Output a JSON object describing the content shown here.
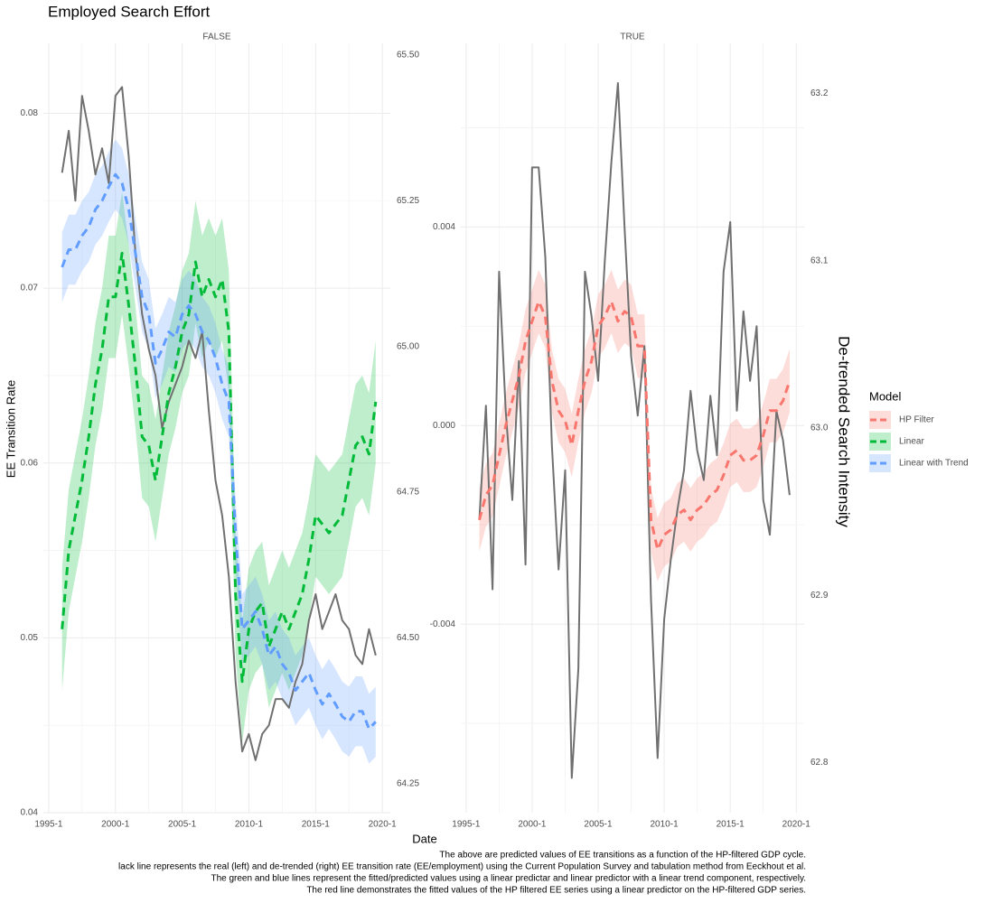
{
  "title": "Employed Search Effort",
  "x_label": "Date",
  "legend": {
    "title": "Model",
    "position": "right"
  },
  "caption": [
    "The above are predicted values of EE transitions as a function of the HP-filtered GDP cycle.",
    "lack line represents the real (left) and de-trended (right) EE transition rate (EE/employment) using the Current Population Survey and tabulation method from Eeckhout et al.",
    "The green and blue lines represent the fitted/predicted values using a linear predictar and linear predictor with a linear trend component, respectively.",
    "The red line demonstrates the fitted values of the HP filtered EE series using a linear predictor on the HP-filtered GDP series."
  ],
  "chart_data": [
    {
      "type": "line",
      "facet": "FALSE",
      "y_label": "EE Transition Rate",
      "grid": true,
      "x": [
        1996,
        1996.5,
        1997,
        1997.5,
        1998,
        1998.5,
        1999,
        1999.5,
        2000,
        2000.5,
        2001,
        2001.5,
        2002,
        2002.5,
        2003,
        2003.5,
        2004,
        2004.5,
        2005,
        2005.5,
        2006,
        2006.5,
        2007,
        2007.5,
        2008,
        2008.5,
        2009,
        2009.5,
        2010,
        2010.5,
        2011,
        2011.5,
        2012,
        2012.5,
        2013,
        2013.5,
        2014,
        2014.5,
        2015,
        2015.5,
        2016,
        2016.5,
        2017,
        2017.5,
        2018,
        2018.5,
        2019,
        2019.5
      ],
      "xlim": [
        1994.6,
        2020.6
      ],
      "xticks": [
        {
          "value": 1995,
          "label": "1995-1"
        },
        {
          "value": 2000,
          "label": "2000-1"
        },
        {
          "value": 2005,
          "label": "2005-1"
        },
        {
          "value": 2010,
          "label": "2010-1"
        },
        {
          "value": 2015,
          "label": "2015-1"
        },
        {
          "value": 2020,
          "label": "2020-1"
        }
      ],
      "ylim": [
        0.04,
        0.084
      ],
      "yticks": [
        0.04,
        0.05,
        0.06,
        0.07,
        0.08
      ],
      "y2lim": [
        64.2,
        65.52
      ],
      "y2ticks": [
        64.25,
        {
          "value": 64.5,
          "label": "64.50"
        },
        64.75,
        {
          "value": 65,
          "label": "65.00"
        },
        65.25,
        {
          "value": 65.5,
          "label": "65.50"
        }
      ],
      "series": [
        {
          "color": "#707070",
          "values": [
            0.0766,
            0.079,
            0.075,
            0.081,
            0.079,
            0.0765,
            0.078,
            0.076,
            0.081,
            0.0815,
            0.0775,
            0.072,
            0.0685,
            0.0665,
            0.065,
            0.062,
            0.0635,
            0.0645,
            0.0655,
            0.067,
            0.066,
            0.0675,
            0.063,
            0.059,
            0.057,
            0.0535,
            0.0475,
            0.0435,
            0.0445,
            0.043,
            0.0445,
            0.045,
            0.0465,
            0.0465,
            0.046,
            0.0475,
            0.0485,
            0.051,
            0.0525,
            0.0505,
            0.0515,
            0.0525,
            0.051,
            0.0505,
            0.049,
            0.0485,
            0.0505,
            0.049
          ]
        },
        {
          "name": "Linear",
          "color": "#00BA38",
          "band": 0.0035,
          "values": [
            0.0505,
            0.055,
            0.057,
            0.059,
            0.0615,
            0.0645,
            0.0665,
            0.0695,
            0.0695,
            0.072,
            0.069,
            0.0655,
            0.0615,
            0.061,
            0.059,
            0.0615,
            0.064,
            0.0655,
            0.0675,
            0.0685,
            0.0715,
            0.0695,
            0.0705,
            0.0695,
            0.0705,
            0.0675,
            0.0525,
            0.0475,
            0.0505,
            0.0515,
            0.052,
            0.0495,
            0.0505,
            0.0515,
            0.0505,
            0.0515,
            0.0525,
            0.0545,
            0.057,
            0.0565,
            0.056,
            0.0565,
            0.057,
            0.059,
            0.061,
            0.0615,
            0.0605,
            0.0635
          ]
        },
        {
          "name": "Linear with Trend",
          "color": "#619CFF",
          "band": 0.002,
          "values": [
            0.0712,
            0.0722,
            0.0722,
            0.073,
            0.0735,
            0.0745,
            0.075,
            0.0758,
            0.0765,
            0.076,
            0.0745,
            0.072,
            0.0695,
            0.0685,
            0.0657,
            0.0665,
            0.0675,
            0.0672,
            0.0685,
            0.069,
            0.0685,
            0.0675,
            0.067,
            0.066,
            0.0645,
            0.0635,
            0.056,
            0.0505,
            0.051,
            0.0515,
            0.0505,
            0.049,
            0.0495,
            0.0485,
            0.048,
            0.047,
            0.0475,
            0.048,
            0.047,
            0.0462,
            0.0468,
            0.0462,
            0.0455,
            0.0452,
            0.0458,
            0.0458,
            0.0448,
            0.0452
          ]
        }
      ]
    },
    {
      "type": "line",
      "facet": "TRUE",
      "y2_label": "De-trended Search Intensity",
      "grid": true,
      "x": [
        1996,
        1996.5,
        1997,
        1997.5,
        1998,
        1998.5,
        1999,
        1999.5,
        2000,
        2000.5,
        2001,
        2001.5,
        2002,
        2002.5,
        2003,
        2003.5,
        2004,
        2004.5,
        2005,
        2005.5,
        2006,
        2006.5,
        2007,
        2007.5,
        2008,
        2008.5,
        2009,
        2009.5,
        2010,
        2010.5,
        2011,
        2011.5,
        2012,
        2012.5,
        2013,
        2013.5,
        2014,
        2014.5,
        2015,
        2015.5,
        2016,
        2016.5,
        2017,
        2017.5,
        2018,
        2018.5,
        2019,
        2019.5
      ],
      "xlim": [
        1994.6,
        2020.6
      ],
      "xticks": [
        {
          "value": 1995,
          "label": "1995-1"
        },
        {
          "value": 2000,
          "label": "2000-1"
        },
        {
          "value": 2005,
          "label": "2005-1"
        },
        {
          "value": 2010,
          "label": "2010-1"
        },
        {
          "value": 2015,
          "label": "2015-1"
        },
        {
          "value": 2020,
          "label": "2020-1"
        }
      ],
      "ylim": [
        -0.0078,
        0.0077
      ],
      "yticks": [
        -0.004,
        {
          "value": 0,
          "label": "0.000"
        },
        0.004
      ],
      "y2lim": [
        62.77,
        63.23
      ],
      "y2ticks": [
        62.8,
        62.9,
        {
          "value": 63,
          "label": "63.0"
        },
        63.1,
        63.2
      ],
      "series": [
        {
          "color": "#707070",
          "values": [
            -0.0019,
            0.0004,
            -0.0033,
            0.0031,
            0.0003,
            -0.0015,
            0.0013,
            -0.0028,
            0.0052,
            0.0052,
            0.0034,
            -0.0004,
            -0.0029,
            -0.0009,
            -0.0071,
            -0.0049,
            0.0031,
            0.0022,
            0.0009,
            0.0033,
            0.0053,
            0.0069,
            0.004,
            0.0014,
            0.0002,
            0.0016,
            -0.0035,
            -0.0067,
            -0.0039,
            -0.0027,
            -0.0017,
            -0.0009,
            0.0007,
            -0.0005,
            -0.0011,
            0.0006,
            -0.0006,
            0.0031,
            0.0041,
            0.0003,
            0.0023,
            0.0009,
            0.002,
            -0.0015,
            -0.0022,
            0.0003,
            -0.0003,
            -0.0014
          ]
        },
        {
          "name": "HP Filter",
          "color": "#F8766D",
          "band": 0.00064,
          "values": [
            -0.0019,
            -0.0014,
            -0.0012,
            -0.0006,
            0,
            0.0005,
            0.001,
            0.0017,
            0.0021,
            0.0025,
            0.0022,
            0.0009,
            0.0003,
            0.0001,
            -0.0004,
            0.0003,
            0.0009,
            0.0013,
            0.002,
            0.0022,
            0.0025,
            0.0021,
            0.0023,
            0.0022,
            0.0016,
            0.0016,
            -0.0019,
            -0.0025,
            -0.0022,
            -0.0021,
            -0.0018,
            -0.0017,
            -0.0019,
            -0.0017,
            -0.0016,
            -0.0014,
            -0.0013,
            -0.001,
            -0.0006,
            -0.0005,
            -0.0007,
            -0.0007,
            -0.0006,
            -0.0002,
            0.0003,
            0.0003,
            0.0005,
            0.0009
          ]
        }
      ]
    }
  ]
}
